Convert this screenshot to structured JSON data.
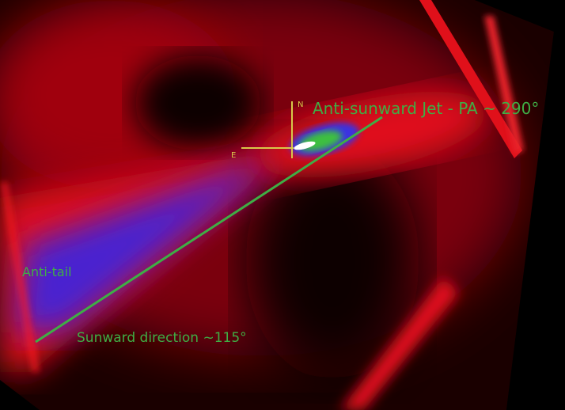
{
  "annotations": {
    "jet_label": "Anti-sunward Jet - PA ~ 290°",
    "antitail_label": "Anti-tail",
    "sunward_label": "Sunward direction ~115°",
    "north_label": "N",
    "east_label": "E"
  },
  "colors": {
    "background": "#000000",
    "coma_red": "#e0101a",
    "antitail_blue": "#4a22d0",
    "jet_green": "#3cc040",
    "annotation_green": "#3fae45",
    "compass_yellow": "#d8c84a"
  }
}
